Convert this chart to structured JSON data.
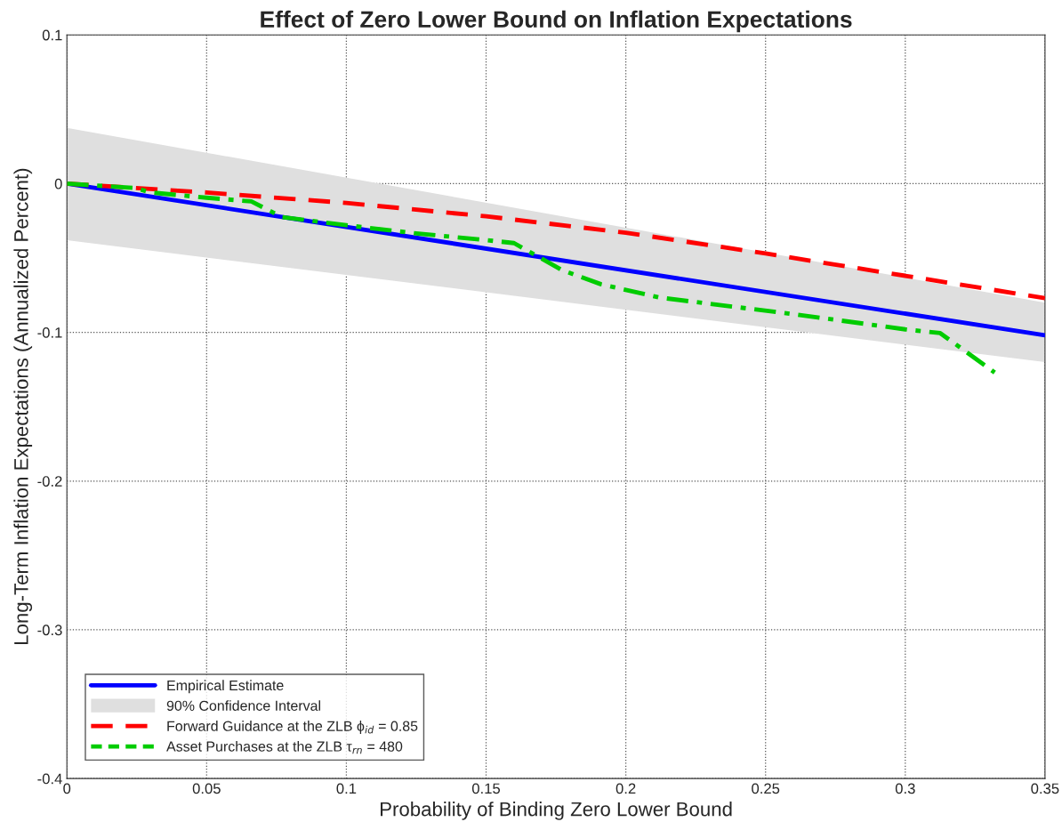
{
  "chart_data": {
    "type": "line",
    "title": "Effect of Zero Lower Bound on Inflation Expectations",
    "xlabel": "Probability of Binding Zero Lower Bound",
    "ylabel": "Long-Term Inflation Expectations (Annualized Percent)",
    "series": [
      {
        "name": "Empirical Estimate",
        "color": "#0000ff",
        "line_style": "solid",
        "x": [
          0,
          0.35
        ],
        "values": [
          0,
          -0.102
        ],
        "lower": [
          -0.038,
          -0.12
        ],
        "upper": [
          0.0375,
          -0.08
        ]
      },
      {
        "name": "Forward Guidance at the ZLB ϕ$_{id}$ = 0.85",
        "color": "#ff0000",
        "line_style": "dashed",
        "x": [
          0,
          0.05,
          0.1,
          0.15,
          0.2,
          0.25,
          0.3,
          0.35
        ],
        "values": [
          0,
          -0.006,
          -0.013,
          -0.022,
          -0.033,
          -0.047,
          -0.062,
          -0.077
        ]
      },
      {
        "name": "Asset Purchases at the ZLB τ$_{rn}$ = 480",
        "color": "#00cc00",
        "line_style": "dashdot",
        "x": [
          0,
          0.0245,
          0.03,
          0.05,
          0.066,
          0.077,
          0.1,
          0.125,
          0.15,
          0.16,
          0.177,
          0.191,
          0.212,
          0.261,
          0.3,
          0.3125,
          0.332
        ],
        "values": [
          0,
          -0.003,
          -0.006,
          -0.0095,
          -0.012,
          -0.0225,
          -0.028,
          -0.0335,
          -0.038,
          -0.04,
          -0.058,
          -0.0676,
          -0.0766,
          -0.088,
          -0.098,
          -0.1005,
          -0.127
        ]
      }
    ],
    "xlim": [
      0,
      0.35
    ],
    "xticks": [
      0,
      0.05,
      0.1,
      0.15,
      0.2,
      0.25,
      0.3,
      0.35
    ],
    "ylim": [
      -0.4,
      0.1
    ],
    "yticks": [
      {
        "value": -0.4,
        "label": "-0.4"
      },
      {
        "value": -0.3,
        "label": "-0.3"
      },
      {
        "value": -0.2,
        "label": "-0.2"
      },
      {
        "value": -0.1,
        "label": "-0.1"
      },
      0,
      0.1
    ],
    "annotations": [
      "90% Confidence Interval"
    ],
    "grid": true,
    "legend": "bottom left"
  }
}
